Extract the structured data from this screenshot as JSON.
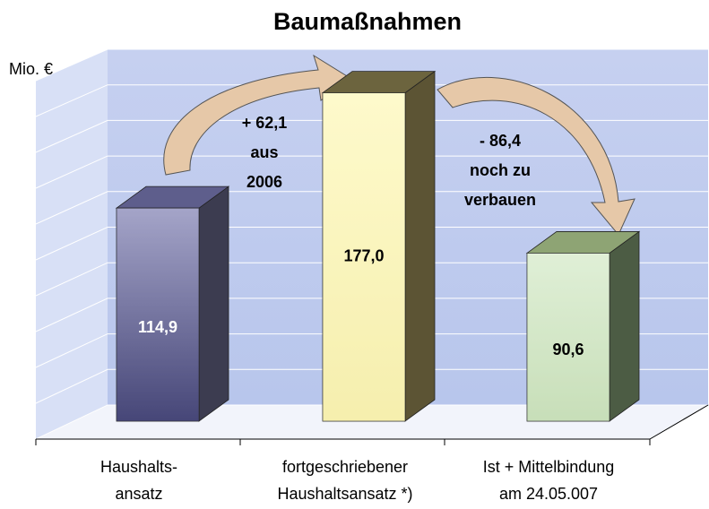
{
  "chart_data": {
    "type": "bar3d",
    "title": "Baumaßnahmen",
    "y_label": "Mio. €",
    "categories": [
      [
        "Haushalts-",
        "ansatz"
      ],
      [
        "fortgeschriebener",
        "Haushaltsansatz *)"
      ],
      [
        "Ist + Mittelbindung",
        "am 24.05.007"
      ]
    ],
    "values": [
      114.9,
      177.0,
      90.6
    ],
    "value_labels": [
      "114,9",
      "177,0",
      "90,6"
    ],
    "colors": [
      "#6a6a9a",
      "#fbf6bf",
      "#d4e8c8"
    ],
    "annotations": [
      [
        "+ 62,1",
        "aus",
        "2006"
      ],
      [
        "- 86,4",
        "noch zu",
        "verbauen"
      ]
    ],
    "ylim": [
      0,
      200
    ],
    "yticks": [
      0,
      20,
      40,
      60,
      80,
      100,
      120,
      140,
      160,
      180,
      200
    ],
    "grid": true
  }
}
